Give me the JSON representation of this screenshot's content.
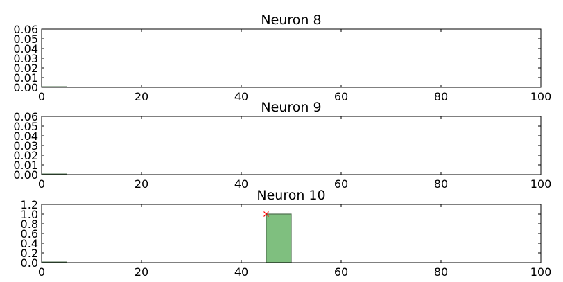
{
  "chart_data": [
    {
      "type": "bar",
      "title": "Neuron 8",
      "xlim": [
        0,
        100
      ],
      "ylim": [
        0,
        0.06
      ],
      "xticks": [
        "0",
        "20",
        "40",
        "60",
        "80",
        "100"
      ],
      "yticks": [
        "0.00",
        "0.01",
        "0.02",
        "0.03",
        "0.04",
        "0.05",
        "0.06"
      ],
      "bins": [],
      "markers": []
    },
    {
      "type": "bar",
      "title": "Neuron 9",
      "xlim": [
        0,
        100
      ],
      "ylim": [
        0,
        0.06
      ],
      "xticks": [
        "0",
        "20",
        "40",
        "60",
        "80",
        "100"
      ],
      "yticks": [
        "0.00",
        "0.01",
        "0.02",
        "0.03",
        "0.04",
        "0.05",
        "0.06"
      ],
      "bins": [],
      "markers": []
    },
    {
      "type": "bar",
      "title": "Neuron 10",
      "xlim": [
        0,
        100
      ],
      "ylim": [
        0,
        1.2
      ],
      "xticks": [
        "0",
        "20",
        "40",
        "60",
        "80",
        "100"
      ],
      "yticks": [
        "0.0",
        "0.2",
        "0.4",
        "0.6",
        "0.8",
        "1.0",
        "1.2"
      ],
      "bins": [
        {
          "x0": 45,
          "x1": 50,
          "value": 1.0
        }
      ],
      "markers": [
        {
          "x": 45,
          "y": 1.0,
          "shape": "x"
        }
      ]
    }
  ],
  "colors": {
    "bar_fill": "#7fbf7f",
    "bar_edge": "#4f6f4f",
    "marker": "#ff0000",
    "axes": "#000000"
  }
}
